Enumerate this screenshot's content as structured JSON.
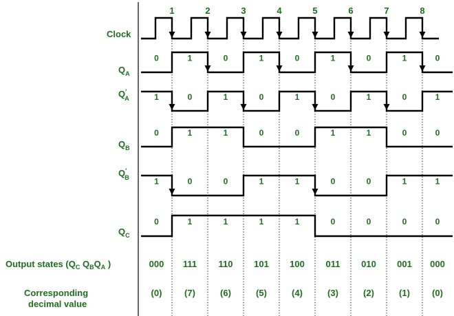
{
  "clock": {
    "label": "Clock",
    "pulses": [
      "1",
      "2",
      "3",
      "4",
      "5",
      "6",
      "7",
      "8"
    ]
  },
  "signals": [
    {
      "id": "QA",
      "main": "Q",
      "prime": "",
      "sub": "A",
      "levels": [
        0,
        1,
        0,
        1,
        0,
        1,
        0,
        1,
        0
      ],
      "values": [
        "0",
        "1",
        "0",
        "1",
        "0",
        "1",
        "0",
        "1",
        "0"
      ]
    },
    {
      "id": "QA-bar",
      "main": "Q",
      "prime": "'",
      "sub": "A",
      "levels": [
        1,
        0,
        1,
        0,
        1,
        0,
        1,
        0,
        1
      ],
      "values": [
        "1",
        "0",
        "1",
        "0",
        "1",
        "0",
        "1",
        "0",
        "1"
      ]
    },
    {
      "id": "QB",
      "main": "Q",
      "prime": "",
      "sub": "B",
      "levels": [
        0,
        1,
        1,
        0,
        0,
        1,
        1,
        0,
        0
      ],
      "values": [
        "0",
        "1",
        "1",
        "0",
        "0",
        "1",
        "1",
        "0",
        "0"
      ]
    },
    {
      "id": "QB-bar",
      "main": "Q",
      "prime": "'",
      "sub": "B",
      "levels": [
        1,
        0,
        0,
        1,
        1,
        0,
        0,
        1,
        1
      ],
      "values": [
        "1",
        "0",
        "0",
        "1",
        "1",
        "0",
        "0",
        "1",
        "1"
      ]
    },
    {
      "id": "QC",
      "main": "Q",
      "prime": "",
      "sub": "C",
      "levels": [
        0,
        1,
        1,
        1,
        1,
        0,
        0,
        0,
        0
      ],
      "values": [
        "0",
        "1",
        "1",
        "1",
        "1",
        "0",
        "0",
        "0",
        "0"
      ]
    }
  ],
  "output_states": {
    "label_prefix": "Output states (Q",
    "label_parts": [
      {
        "sub": "C",
        "text": " Q"
      },
      {
        "sub": "B",
        "text": "Q"
      },
      {
        "sub": "A",
        "text": " )"
      }
    ],
    "values": [
      "000",
      "111",
      "110",
      "101",
      "100",
      "011",
      "010",
      "001",
      "000"
    ]
  },
  "decimal": {
    "label_line1": "Corresponding",
    "label_line2": "decimal value",
    "values": [
      "(0)",
      "(7)",
      "(6)",
      "(5)",
      "(4)",
      "(3)",
      "(2)",
      "(1)",
      "(0)"
    ]
  }
}
